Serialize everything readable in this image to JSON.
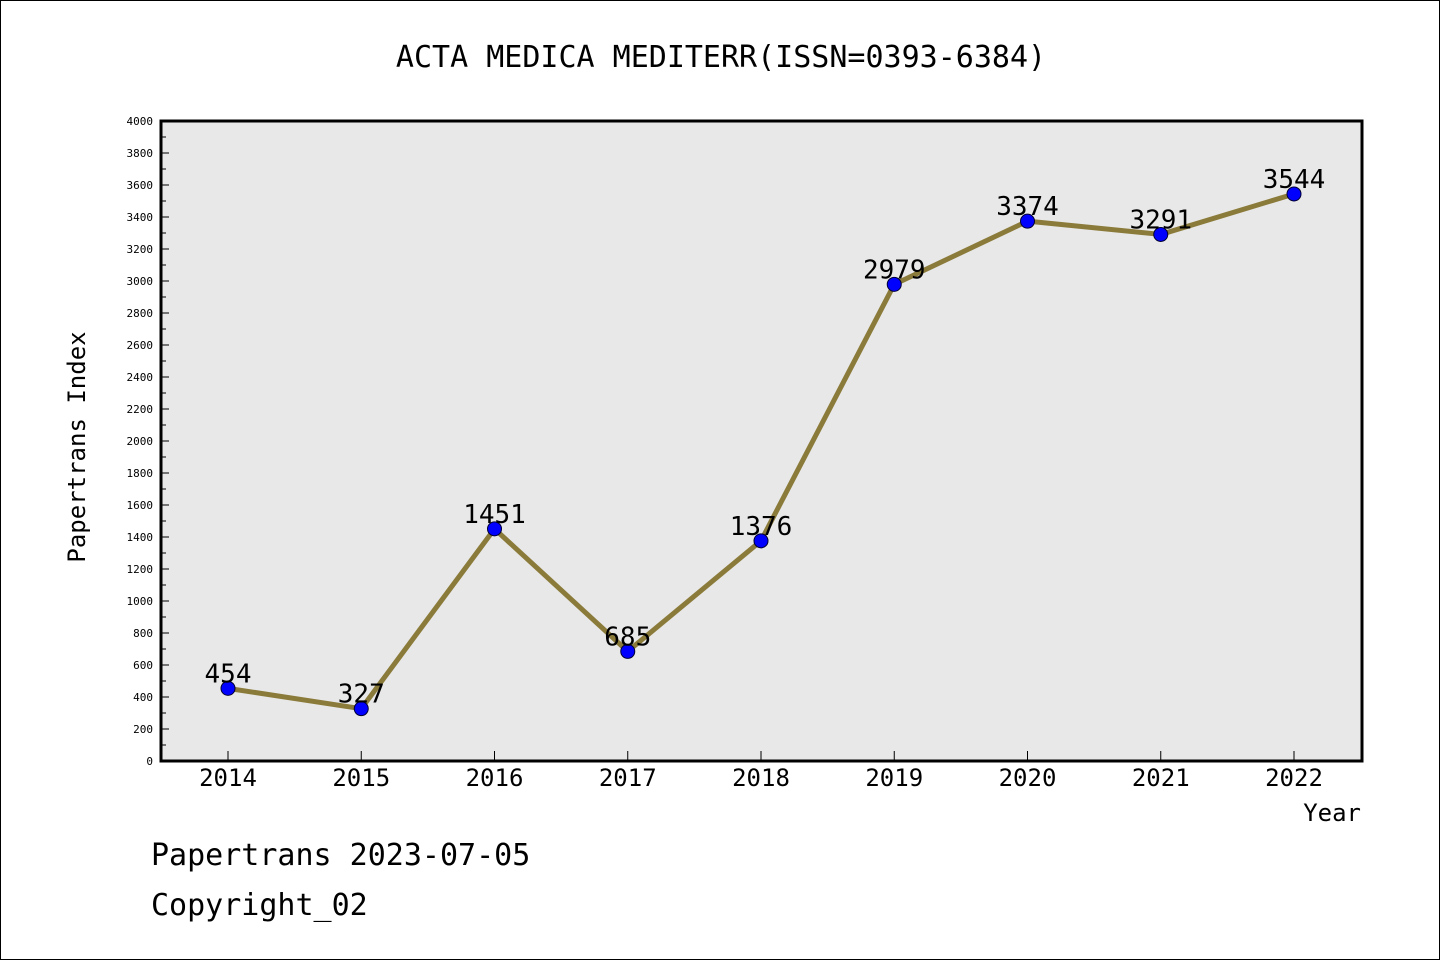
{
  "chart_data": {
    "type": "line",
    "title": "ACTA MEDICA MEDITERR(ISSN=0393-6384)",
    "xlabel": "Year",
    "ylabel": "Papertrans Index",
    "categories": [
      "2014",
      "2015",
      "2016",
      "2017",
      "2018",
      "2019",
      "2020",
      "2021",
      "2022"
    ],
    "series": [
      {
        "values": [
          454,
          327,
          1451,
          685,
          1376,
          2979,
          3374,
          3291,
          3544
        ]
      }
    ],
    "ylim": [
      0,
      4000
    ],
    "yticks": [
      0,
      200,
      400,
      600,
      800,
      1000,
      1200,
      1400,
      1600,
      1800,
      2000,
      2200,
      2400,
      2600,
      2800,
      3000,
      3200,
      3400,
      3600,
      3800,
      4000
    ],
    "grid": false,
    "legend": "none",
    "colors": {
      "line": "#8b7b3a",
      "marker": "#0000ff",
      "plot_background": "#e8e8e8"
    }
  },
  "footer": {
    "line1": "Papertrans 2023-07-05",
    "line2": "Copyright_02"
  }
}
